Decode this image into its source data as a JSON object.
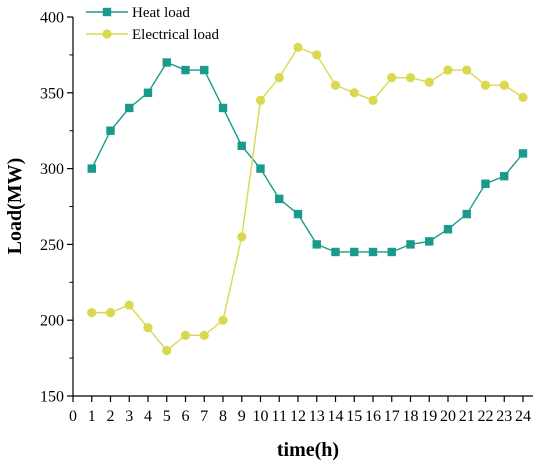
{
  "chart_data": {
    "type": "line",
    "xlabel": "time(h)",
    "ylabel": "Load(MW)",
    "xlim": [
      0,
      24
    ],
    "ylim": [
      150,
      400
    ],
    "x_ticks": [
      0,
      1,
      2,
      3,
      4,
      5,
      6,
      7,
      8,
      9,
      10,
      11,
      12,
      13,
      14,
      15,
      16,
      17,
      18,
      19,
      20,
      21,
      22,
      23,
      24
    ],
    "y_ticks": [
      150,
      200,
      250,
      300,
      350,
      400
    ],
    "x": [
      1,
      2,
      3,
      4,
      5,
      6,
      7,
      8,
      9,
      10,
      11,
      12,
      13,
      14,
      15,
      16,
      17,
      18,
      19,
      20,
      21,
      22,
      23,
      24
    ],
    "series": [
      {
        "name": "Heat load",
        "color": "#1a9a8a",
        "marker": "square",
        "values": [
          300,
          325,
          340,
          350,
          370,
          365,
          365,
          340,
          315,
          300,
          280,
          270,
          250,
          245,
          245,
          245,
          245,
          250,
          252,
          260,
          270,
          290,
          295,
          310
        ]
      },
      {
        "name": "Electrical load",
        "color": "#d9d84e",
        "marker": "circle",
        "values": [
          205,
          205,
          210,
          195,
          180,
          190,
          190,
          200,
          255,
          345,
          360,
          380,
          375,
          355,
          350,
          345,
          360,
          360,
          357,
          365,
          365,
          355,
          355,
          347
        ]
      }
    ],
    "legend_position": "top-left",
    "grid": false
  }
}
